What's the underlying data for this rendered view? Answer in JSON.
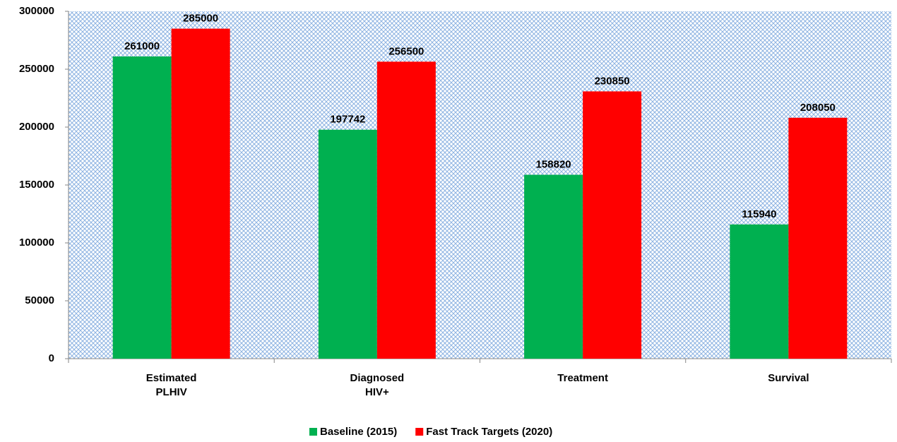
{
  "chart_data": {
    "type": "bar",
    "categories": [
      "Estimated\nPLHIV",
      "Diagnosed\nHIV+",
      "Treatment",
      "Survival"
    ],
    "series": [
      {
        "name": "Baseline (2015)",
        "color": "#00b050",
        "values": [
          261000,
          197742,
          158820,
          115940
        ]
      },
      {
        "name": "Fast Track Targets (2020)",
        "color": "#ff0000",
        "values": [
          285000,
          256500,
          230850,
          208050
        ]
      }
    ],
    "ylim": [
      0,
      300000
    ],
    "yticks": [
      0,
      50000,
      100000,
      150000,
      200000,
      250000,
      300000
    ],
    "grid": false,
    "legend": "bottom"
  }
}
